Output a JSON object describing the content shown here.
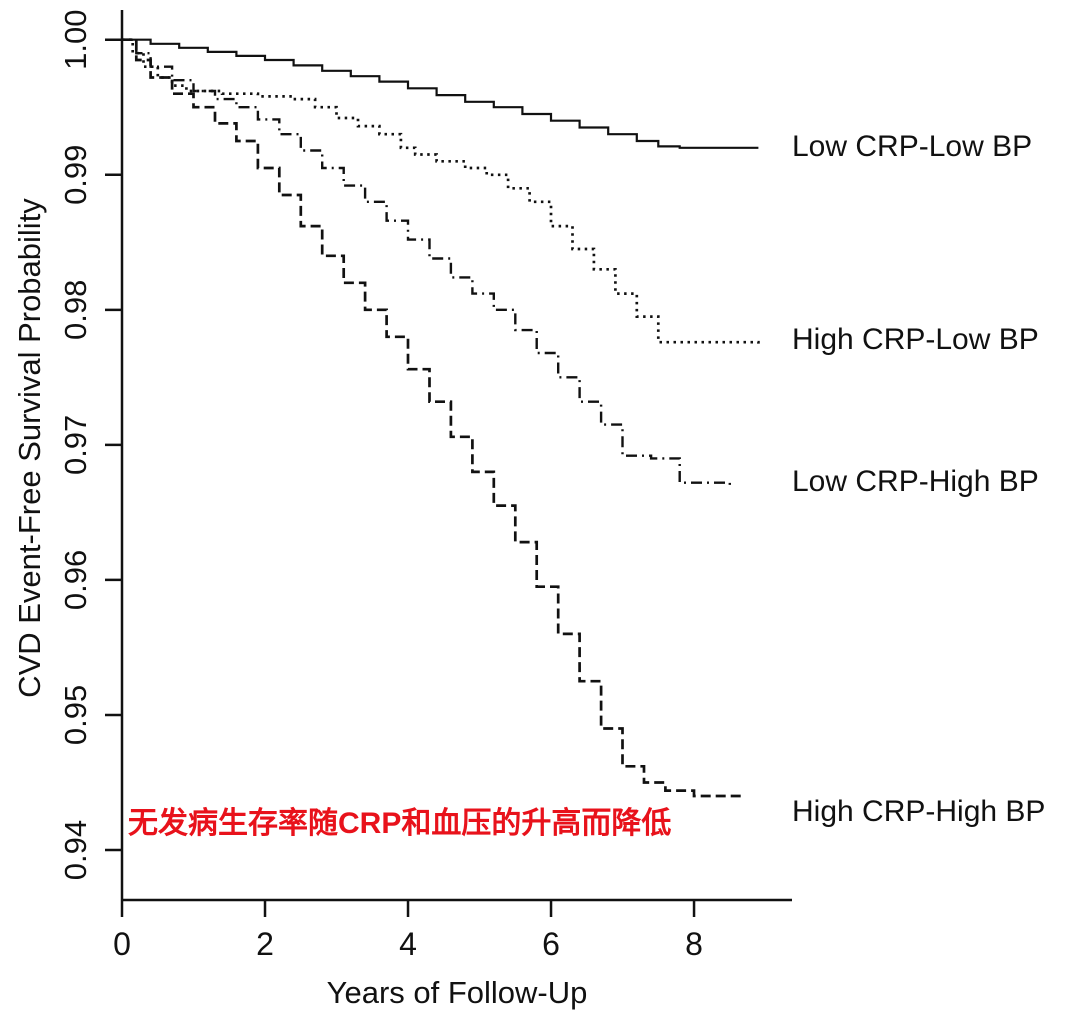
{
  "chart_data": {
    "type": "line",
    "subtype": "kaplan-meier-step",
    "xlabel": "Years of Follow-Up",
    "ylabel": "CVD Event-Free Survival Probability",
    "xlim": [
      0,
      9
    ],
    "ylim": [
      0.94,
      1.0
    ],
    "xticks": [
      0,
      2,
      4,
      6,
      8
    ],
    "yticks": [
      0.94,
      0.95,
      0.96,
      0.97,
      0.98,
      0.99,
      1.0
    ],
    "grid": false,
    "axis_color": "#111111",
    "legend_position": "right-of-curves",
    "annotation": {
      "text": "无发病生存率随CRP和血压的升高而降低",
      "color": "#e8121b"
    },
    "series": [
      {
        "name": "Low CRP-Low BP",
        "line_style": "solid",
        "color": "#111111",
        "x": [
          0,
          0.4,
          0.8,
          1.2,
          1.6,
          2.0,
          2.4,
          2.8,
          3.2,
          3.6,
          4.0,
          4.4,
          4.8,
          5.2,
          5.6,
          6.0,
          6.4,
          6.8,
          7.2,
          7.5,
          7.8,
          8.9
        ],
        "y": [
          1.0,
          0.9997,
          0.9994,
          0.9991,
          0.9988,
          0.9985,
          0.9981,
          0.9977,
          0.9973,
          0.9969,
          0.9964,
          0.9959,
          0.9954,
          0.995,
          0.9945,
          0.994,
          0.9935,
          0.993,
          0.9925,
          0.9921,
          0.992,
          0.992
        ]
      },
      {
        "name": "High CRP-Low BP",
        "line_style": "dotted",
        "color": "#111111",
        "x": [
          0,
          0.15,
          0.3,
          0.5,
          0.7,
          0.9,
          1.4,
          1.9,
          2.4,
          2.7,
          3.0,
          3.3,
          3.6,
          3.9,
          4.1,
          4.4,
          4.8,
          5.1,
          5.4,
          5.7,
          6.0,
          6.3,
          6.6,
          6.9,
          7.2,
          7.5,
          8.9
        ],
        "y": [
          1.0,
          0.999,
          0.998,
          0.9972,
          0.9966,
          0.9962,
          0.996,
          0.9958,
          0.9956,
          0.995,
          0.9942,
          0.9936,
          0.993,
          0.992,
          0.9915,
          0.991,
          0.9905,
          0.99,
          0.989,
          0.988,
          0.9862,
          0.9845,
          0.983,
          0.9812,
          0.9795,
          0.9776,
          0.9775
        ]
      },
      {
        "name": "Low CRP-High BP",
        "line_style": "dashdot",
        "color": "#111111",
        "x": [
          0,
          0.2,
          0.4,
          0.7,
          1.0,
          1.3,
          1.6,
          1.9,
          2.2,
          2.5,
          2.8,
          3.1,
          3.4,
          3.7,
          4.0,
          4.3,
          4.6,
          4.9,
          5.2,
          5.5,
          5.8,
          6.1,
          6.4,
          6.7,
          7.0,
          7.4,
          7.8,
          8.5
        ],
        "y": [
          1.0,
          0.999,
          0.998,
          0.997,
          0.9962,
          0.9956,
          0.995,
          0.9941,
          0.993,
          0.9918,
          0.9905,
          0.9892,
          0.988,
          0.9866,
          0.9852,
          0.9838,
          0.9824,
          0.9812,
          0.98,
          0.9785,
          0.9768,
          0.975,
          0.9732,
          0.9715,
          0.9692,
          0.969,
          0.9672,
          0.967
        ]
      },
      {
        "name": "High CRP-High BP",
        "line_style": "dashed",
        "color": "#111111",
        "x": [
          0,
          0.2,
          0.4,
          0.7,
          1.0,
          1.3,
          1.6,
          1.9,
          2.2,
          2.5,
          2.8,
          3.1,
          3.4,
          3.7,
          4.0,
          4.3,
          4.6,
          4.9,
          5.2,
          5.5,
          5.8,
          6.1,
          6.4,
          6.7,
          7.0,
          7.3,
          7.6,
          8.0,
          8.7
        ],
        "y": [
          1.0,
          0.9985,
          0.9972,
          0.996,
          0.995,
          0.9938,
          0.9925,
          0.9905,
          0.9885,
          0.9862,
          0.984,
          0.982,
          0.98,
          0.978,
          0.9756,
          0.9732,
          0.9706,
          0.968,
          0.9655,
          0.9628,
          0.9595,
          0.956,
          0.9525,
          0.949,
          0.9462,
          0.945,
          0.9444,
          0.944,
          0.944
        ]
      }
    ]
  }
}
